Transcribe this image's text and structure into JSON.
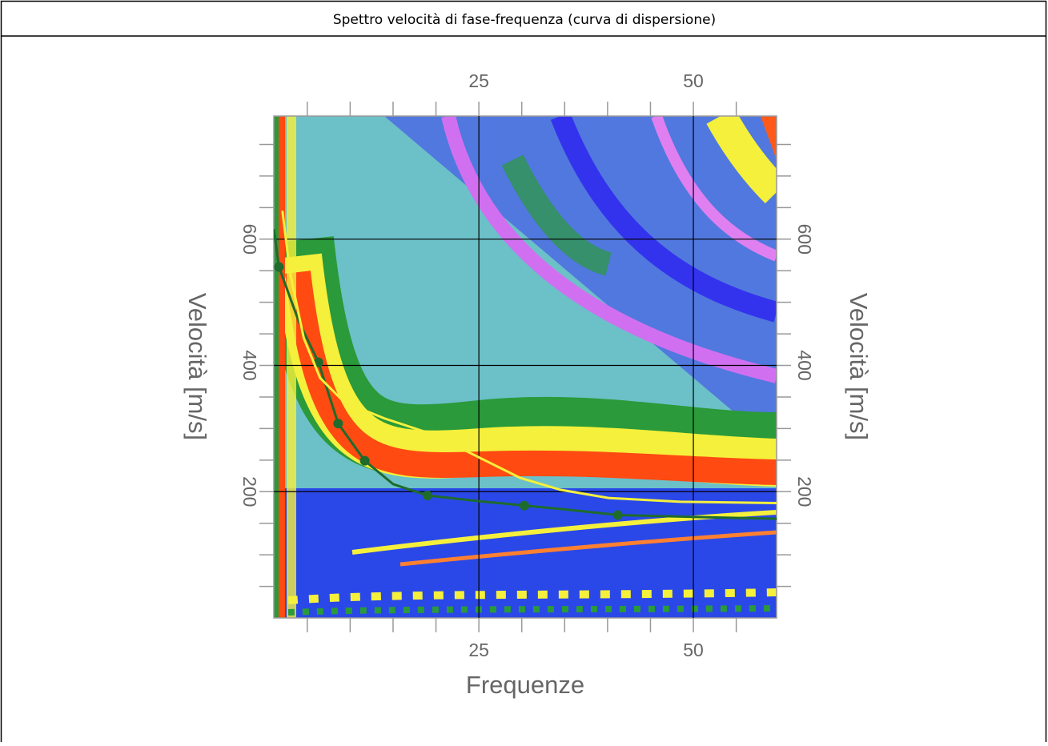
{
  "title": "Spettro velocità di fase-frequenza (curva di dispersione)",
  "chart_data": {
    "type": "line",
    "xlabel": "Frequenze",
    "ylabel": "Velocità [m/s]",
    "xlim": [
      1.1,
      59.7
    ],
    "ylim": [
      0,
      795
    ],
    "xticks": [
      25,
      50
    ],
    "xminorticks": [
      5,
      10,
      15,
      20,
      30,
      35,
      40,
      45,
      55
    ],
    "yticks": [
      200,
      400,
      600
    ],
    "yminorticks": [
      50,
      100,
      150,
      250,
      300,
      350,
      450,
      500,
      550,
      650,
      700,
      750
    ],
    "grid": true,
    "series": [
      {
        "style": "line",
        "color": "#1e6b2c",
        "x": [
          1.1,
          1.7,
          4,
          6.3,
          8.6,
          11.7,
          15,
          19.0,
          25,
          30.3,
          35,
          41.2,
          50,
          59.7
        ],
        "values": [
          616,
          556,
          470,
          405,
          308,
          249,
          212,
          194,
          185,
          178,
          172,
          163,
          160,
          157
        ]
      },
      {
        "style": "points",
        "color": "#1e6b2c",
        "x": [
          1.7,
          6.3,
          8.6,
          11.7,
          19.0,
          30.3,
          41.2
        ],
        "values": [
          556,
          405,
          308,
          249,
          194,
          178,
          163
        ]
      },
      {
        "style": "line",
        "color": "#f5f03c",
        "x": [
          2.1,
          3.0,
          4.6,
          6.5,
          9.3,
          14,
          19.6,
          25.2,
          29.8,
          34.5,
          40.1,
          48.5,
          59.7
        ],
        "values": [
          645,
          546,
          443,
          380,
          342,
          316,
          291,
          253,
          222,
          203,
          190,
          184,
          182
        ]
      }
    ]
  }
}
